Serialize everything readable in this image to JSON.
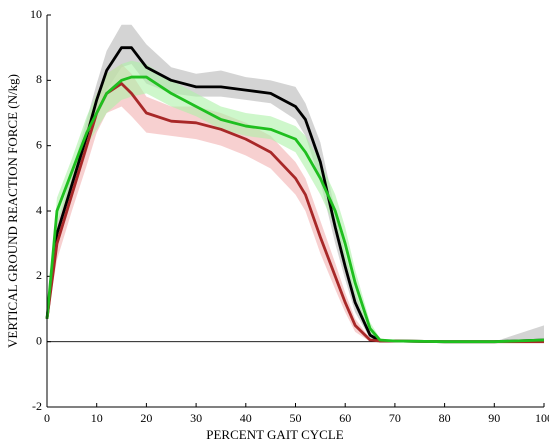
{
  "chart_data": {
    "type": "line",
    "xlabel": "PERCENT GAIT CYCLE",
    "ylabel": "VERTICAL GROUND REACTION FORCE (N/kg)",
    "x": [
      0,
      2,
      5,
      8,
      10,
      12,
      15,
      17,
      20,
      25,
      30,
      35,
      40,
      45,
      50,
      52,
      55,
      58,
      60,
      62,
      65,
      67,
      70,
      80,
      90,
      100
    ],
    "xlim": [
      0,
      100
    ],
    "xticks": [
      0,
      10,
      20,
      30,
      40,
      50,
      60,
      70,
      80,
      90,
      100
    ],
    "ylim": [
      -2,
      10
    ],
    "yticks": [
      -2,
      0,
      2,
      4,
      6,
      8,
      10
    ],
    "series": [
      {
        "color": "#000000",
        "band_color": "#b8b8b8",
        "values": [
          0.7,
          3.3,
          4.8,
          6.3,
          7.4,
          8.3,
          9.0,
          9.0,
          8.4,
          8.0,
          7.8,
          7.8,
          7.7,
          7.6,
          7.2,
          6.8,
          5.5,
          3.5,
          2.3,
          1.2,
          0.2,
          0.02,
          0.02,
          0,
          0,
          0.05
        ],
        "lower": [
          0.6,
          3.0,
          4.4,
          5.8,
          6.9,
          7.7,
          8.4,
          8.5,
          7.9,
          7.6,
          7.5,
          7.5,
          7.4,
          7.3,
          6.8,
          6.3,
          4.9,
          3.0,
          1.9,
          0.9,
          0.1,
          0,
          0,
          0,
          0,
          0
        ],
        "upper": [
          0.8,
          3.6,
          5.2,
          6.8,
          7.9,
          8.9,
          9.7,
          9.7,
          9.1,
          8.4,
          8.2,
          8.3,
          8.1,
          8.0,
          7.8,
          7.3,
          6.1,
          4.0,
          2.7,
          1.5,
          0.3,
          0.05,
          0.03,
          0,
          0,
          0.5
        ]
      },
      {
        "color": "#a82828",
        "band_color": "#f2b0b0",
        "values": [
          0.7,
          3.0,
          4.5,
          6.0,
          7.0,
          7.6,
          7.9,
          7.6,
          7.0,
          6.75,
          6.7,
          6.5,
          6.2,
          5.8,
          5.0,
          4.5,
          3.2,
          2.0,
          1.2,
          0.5,
          0.05,
          0.02,
          0.02,
          0,
          0,
          0
        ],
        "lower": [
          0.6,
          2.5,
          4.0,
          5.4,
          6.4,
          7.0,
          7.2,
          6.9,
          6.4,
          6.3,
          6.2,
          6.0,
          5.7,
          5.3,
          4.5,
          4.0,
          2.7,
          1.6,
          0.9,
          0.3,
          0,
          0,
          0,
          0,
          0,
          0
        ],
        "upper": [
          0.8,
          3.5,
          5.0,
          6.6,
          7.6,
          8.2,
          8.5,
          8.2,
          7.5,
          7.2,
          7.2,
          7.0,
          6.7,
          6.3,
          5.5,
          5.0,
          3.7,
          2.4,
          1.5,
          0.7,
          0.1,
          0.05,
          0.03,
          0,
          0,
          0
        ]
      },
      {
        "color": "#1fbf1f",
        "band_color": "#aef2a8",
        "values": [
          0.7,
          4.0,
          5.2,
          6.4,
          7.0,
          7.6,
          8.0,
          8.1,
          8.1,
          7.6,
          7.2,
          6.8,
          6.6,
          6.5,
          6.2,
          5.8,
          5.0,
          4.0,
          3.0,
          1.8,
          0.4,
          0.05,
          0.02,
          0,
          0,
          0.05
        ],
        "lower": [
          0.6,
          3.6,
          4.8,
          6.0,
          6.5,
          7.0,
          7.4,
          7.5,
          7.6,
          7.2,
          6.9,
          6.5,
          6.3,
          6.2,
          5.8,
          5.3,
          4.5,
          3.5,
          2.5,
          1.4,
          0.2,
          0,
          0,
          0,
          0,
          0
        ],
        "upper": [
          0.8,
          4.4,
          5.6,
          6.9,
          7.6,
          8.2,
          8.5,
          8.6,
          8.5,
          8.0,
          7.6,
          7.2,
          7.0,
          6.9,
          6.6,
          6.3,
          5.5,
          4.5,
          3.5,
          2.2,
          0.6,
          0.1,
          0.04,
          0,
          0,
          0.1
        ]
      }
    ]
  }
}
